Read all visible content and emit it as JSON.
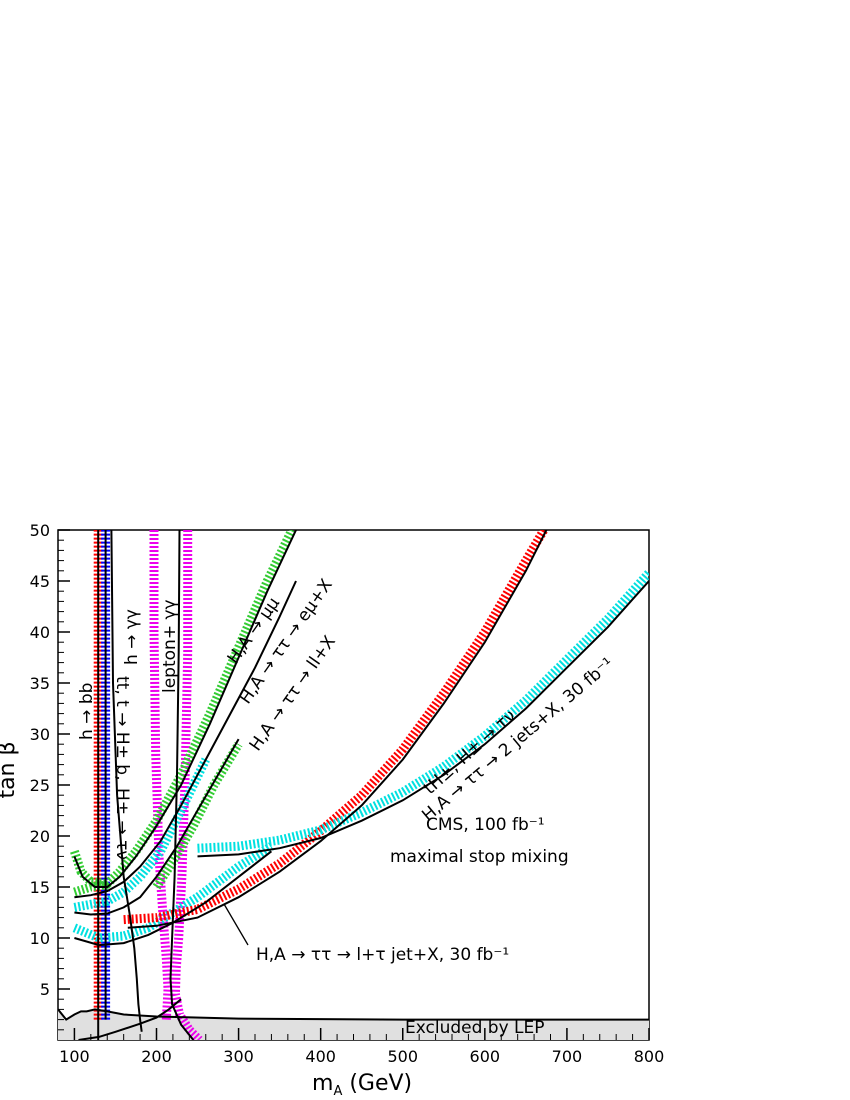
{
  "chart_data": {
    "type": "line",
    "xlabel": "m_A (GeV)",
    "xlabel_main": "m",
    "xlabel_sub": "A",
    "xlabel_units": " (GeV)",
    "ylabel": "tan β",
    "xlim": [
      80,
      800
    ],
    "ylim": [
      0,
      50
    ],
    "x_ticks": [
      100,
      200,
      300,
      400,
      500,
      600,
      700,
      800
    ],
    "y_ticks": [
      5,
      10,
      15,
      20,
      25,
      30,
      35,
      40,
      45,
      50
    ],
    "grid": false,
    "colors": {
      "black": "#000000",
      "red": "#ff0000",
      "blue": "#0000ff",
      "cyan": "#00e0e0",
      "green": "#33cc33",
      "magenta": "#ee00ee",
      "lep_fill": "#e0e0e0"
    },
    "series": [
      {
        "name": "h → bb (5σ line)",
        "color": "black",
        "style": "solid",
        "points": [
          [
            129,
            0
          ],
          [
            129,
            50
          ]
        ]
      },
      {
        "name": "h → bb (band)",
        "color": "red",
        "style": "band",
        "points": [
          [
            129,
            2
          ],
          [
            129,
            50
          ]
        ]
      },
      {
        "name": "H± → τν (5σ line)",
        "color": "black",
        "style": "solid",
        "points": [
          [
            138,
            2
          ],
          [
            138,
            50
          ]
        ]
      },
      {
        "name": "H± → τν (band)",
        "color": "blue",
        "style": "band",
        "points": [
          [
            138,
            2
          ],
          [
            138,
            50
          ]
        ]
      },
      {
        "name": "h → γγ",
        "color": "black",
        "style": "solid",
        "points": [
          [
            145,
            50
          ],
          [
            147,
            35
          ],
          [
            152,
            24
          ],
          [
            160,
            16
          ],
          [
            168,
            12
          ],
          [
            173,
            9
          ],
          [
            176,
            6
          ],
          [
            178,
            3.5
          ],
          [
            180,
            2
          ],
          [
            182,
            0.8
          ]
        ]
      },
      {
        "name": "lepton+γγ",
        "color": "black",
        "style": "solid",
        "points": [
          [
            228,
            50
          ],
          [
            227,
            38
          ],
          [
            225,
            26
          ],
          [
            222,
            16
          ],
          [
            219,
            10
          ],
          [
            217,
            6
          ],
          [
            219,
            3.5
          ],
          [
            230,
            1.5
          ],
          [
            245,
            0
          ]
        ]
      },
      {
        "name": "lepton+γγ band left",
        "color": "magenta",
        "style": "band",
        "points": [
          [
            197,
            50
          ],
          [
            197,
            40
          ],
          [
            199,
            28
          ],
          [
            203,
            18
          ],
          [
            208,
            12
          ],
          [
            212,
            8
          ],
          [
            214,
            5
          ],
          [
            213,
            3.5
          ],
          [
            212,
            2
          ]
        ]
      },
      {
        "name": "lepton+γγ band right",
        "color": "magenta",
        "style": "band",
        "points": [
          [
            238,
            50
          ],
          [
            238,
            38
          ],
          [
            235,
            26
          ],
          [
            231,
            16
          ],
          [
            227,
            10
          ],
          [
            224,
            7
          ],
          [
            223,
            4.5
          ],
          [
            228,
            2.5
          ],
          [
            240,
            1
          ],
          [
            252,
            0
          ]
        ]
      },
      {
        "name": "H,A → μμ line",
        "color": "black",
        "style": "solid",
        "points": [
          [
            100,
            18
          ],
          [
            110,
            16
          ],
          [
            125,
            15
          ],
          [
            140,
            15
          ],
          [
            155,
            16
          ],
          [
            175,
            18
          ],
          [
            200,
            21
          ],
          [
            230,
            25
          ],
          [
            265,
            31
          ],
          [
            300,
            37.5
          ],
          [
            335,
            44
          ],
          [
            370,
            50
          ]
        ]
      },
      {
        "name": "H,A → μμ band",
        "color": "green",
        "style": "band",
        "points": [
          [
            100,
            18.5
          ],
          [
            108,
            16.5
          ],
          [
            120,
            15.5
          ],
          [
            140,
            15.3
          ],
          [
            155,
            16.5
          ],
          [
            175,
            18.5
          ],
          [
            200,
            21.5
          ],
          [
            230,
            26
          ],
          [
            265,
            32
          ],
          [
            300,
            38.5
          ],
          [
            335,
            45
          ],
          [
            365,
            50
          ]
        ]
      },
      {
        "name": "H,A → μμ band lower",
        "color": "green",
        "style": "band",
        "points": [
          [
            100,
            14.5
          ],
          [
            120,
            15
          ],
          [
            140,
            15.2
          ]
        ]
      },
      {
        "name": "H,A → ττ → eμ+X line",
        "color": "black",
        "style": "solid",
        "points": [
          [
            100,
            14
          ],
          [
            120,
            14.2
          ],
          [
            140,
            14.6
          ],
          [
            160,
            15.5
          ],
          [
            180,
            17
          ],
          [
            205,
            19.5
          ],
          [
            230,
            23
          ],
          [
            260,
            27.5
          ],
          [
            290,
            32
          ],
          [
            320,
            36.5
          ],
          [
            350,
            41.5
          ],
          [
            370,
            45
          ]
        ]
      },
      {
        "name": "H,A → ττ → eμ+X band",
        "color": "cyan",
        "style": "band",
        "points": [
          [
            100,
            13
          ],
          [
            120,
            13.3
          ],
          [
            140,
            13.6
          ],
          [
            160,
            14.5
          ],
          [
            180,
            16
          ],
          [
            205,
            18.5
          ],
          [
            230,
            22.5
          ],
          [
            260,
            27.5
          ]
        ]
      },
      {
        "name": "H,A → ττ → ll+X line",
        "color": "black",
        "style": "solid",
        "points": [
          [
            100,
            12.5
          ],
          [
            120,
            12.3
          ],
          [
            140,
            12.4
          ],
          [
            160,
            13
          ],
          [
            180,
            14
          ],
          [
            200,
            16
          ],
          [
            225,
            19
          ],
          [
            250,
            22.5
          ],
          [
            275,
            26
          ],
          [
            300,
            29.5
          ]
        ]
      },
      {
        "name": "H,A → ττ → ll+X band",
        "color": "green",
        "style": "band",
        "points": [
          [
            200,
            15
          ],
          [
            220,
            17.5
          ],
          [
            245,
            21
          ],
          [
            270,
            25
          ],
          [
            300,
            29
          ]
        ]
      },
      {
        "name": "H,A → ττ → l+τjet+X line",
        "color": "black",
        "style": "solid",
        "points": [
          [
            100,
            10
          ],
          [
            130,
            9.3
          ],
          [
            160,
            9.5
          ],
          [
            190,
            10.3
          ],
          [
            220,
            11.5
          ],
          [
            260,
            13.5
          ],
          [
            300,
            16
          ],
          [
            340,
            18.5
          ]
        ]
      },
      {
        "name": "H,A → ττ → l+τjet+X band",
        "color": "cyan",
        "style": "band",
        "points": [
          [
            100,
            11
          ],
          [
            130,
            10
          ],
          [
            160,
            10.2
          ],
          [
            190,
            11
          ],
          [
            220,
            12.5
          ],
          [
            250,
            14
          ],
          [
            275,
            15.5
          ],
          [
            300,
            17
          ],
          [
            340,
            19
          ]
        ]
      },
      {
        "name": "tH±, H± → τν line",
        "color": "black",
        "style": "solid",
        "points": [
          [
            165,
            11
          ],
          [
            200,
            11.2
          ],
          [
            250,
            12
          ],
          [
            300,
            14
          ],
          [
            350,
            16.5
          ],
          [
            400,
            19.5
          ],
          [
            450,
            23
          ],
          [
            500,
            27.5
          ],
          [
            550,
            33
          ],
          [
            600,
            39
          ],
          [
            650,
            46
          ],
          [
            675,
            50
          ]
        ]
      },
      {
        "name": "tH±, H± → τν band",
        "color": "red",
        "style": "band",
        "points": [
          [
            160,
            11.8
          ],
          [
            200,
            12
          ],
          [
            250,
            12.8
          ],
          [
            300,
            14.8
          ],
          [
            350,
            17.3
          ],
          [
            400,
            20.5
          ],
          [
            450,
            24
          ],
          [
            500,
            28.5
          ],
          [
            550,
            34
          ],
          [
            600,
            40
          ],
          [
            650,
            47
          ],
          [
            672,
            50
          ]
        ]
      },
      {
        "name": "H,A → ττ → 2 jets+X line",
        "color": "black",
        "style": "solid",
        "points": [
          [
            250,
            18
          ],
          [
            300,
            18.2
          ],
          [
            350,
            18.8
          ],
          [
            400,
            19.8
          ],
          [
            450,
            21.5
          ],
          [
            500,
            23.5
          ],
          [
            550,
            26
          ],
          [
            600,
            29
          ],
          [
            650,
            32.5
          ],
          [
            700,
            36.5
          ],
          [
            750,
            40.5
          ],
          [
            800,
            45
          ]
        ]
      },
      {
        "name": "H,A → ττ → 2 jets+X band",
        "color": "cyan",
        "style": "band",
        "points": [
          [
            250,
            18.8
          ],
          [
            300,
            19
          ],
          [
            350,
            19.6
          ],
          [
            400,
            20.6
          ],
          [
            450,
            22.3
          ],
          [
            500,
            24.3
          ],
          [
            550,
            26.8
          ],
          [
            600,
            29.8
          ],
          [
            650,
            33.3
          ],
          [
            700,
            37.3
          ],
          [
            750,
            41.3
          ],
          [
            800,
            45.8
          ]
        ]
      },
      {
        "name": "LEP excluded boundary",
        "color": "black",
        "style": "solid",
        "points": [
          [
            80,
            3
          ],
          [
            90,
            2
          ],
          [
            100,
            2.5
          ],
          [
            108,
            2.8
          ],
          [
            115,
            2.8
          ],
          [
            125,
            3
          ],
          [
            140,
            2.8
          ],
          [
            160,
            2.5
          ],
          [
            200,
            2.3
          ],
          [
            300,
            2.1
          ],
          [
            400,
            2.05
          ],
          [
            500,
            2.0
          ],
          [
            600,
            2.0
          ],
          [
            700,
            2.0
          ],
          [
            800,
            2.0
          ]
        ]
      },
      {
        "name": "LEP boundary lower",
        "color": "black",
        "style": "solid",
        "points": [
          [
            105,
            0
          ],
          [
            130,
            0.3
          ],
          [
            150,
            0.8
          ],
          [
            180,
            1.6
          ],
          [
            200,
            2.2
          ],
          [
            215,
            3
          ],
          [
            230,
            4
          ]
        ]
      }
    ],
    "annotations": {
      "h_bb": "h → bb",
      "h_gg": "h → γγ",
      "lepton_gg": "lepton+ γγ",
      "hpm_taunu": "H± → τν",
      "tt_label": "tt, t → H± b,",
      "mumu": "H,A → μμ",
      "emu": "H,A → ττ → eμ+X",
      "ll": "H,A → ττ → ll+X",
      "tHpm": "tH±, H± → τν",
      "twojets": "H,A → ττ → 2 jets+X, 30 fb⁻¹",
      "cms": "CMS, 100 fb⁻¹",
      "stop": "maximal stop mixing",
      "ltau": "H,A → ττ → l+τ jet+X, 30 fb⁻¹",
      "lep": "Excluded by LEP"
    }
  }
}
